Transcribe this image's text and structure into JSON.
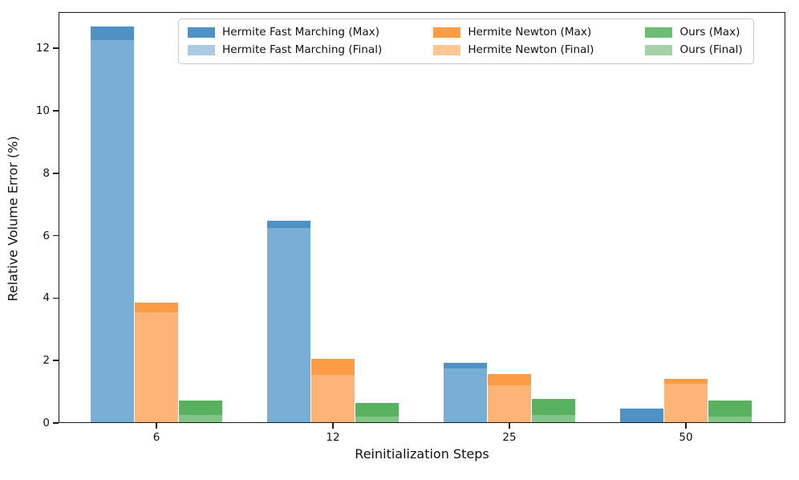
{
  "chart_data": {
    "type": "bar",
    "title": "",
    "xlabel": "Reinitialization Steps",
    "ylabel": "Relative Volume Error (%)",
    "categories": [
      "6",
      "12",
      "25",
      "50"
    ],
    "yticks": [
      0,
      2,
      4,
      6,
      8,
      10,
      12
    ],
    "ylim": [
      0,
      13.16
    ],
    "grid": false,
    "legend_position": "upper center, inside plot, 3 columns x 2 rows",
    "bar_style": "overlaid pairs: Max bar (dark) behind, Final bar (light) in front at same x",
    "groups": [
      "Hermite Fast Marching",
      "Hermite Newton",
      "Ours"
    ],
    "series": [
      {
        "name": "Hermite Fast Marching (Max)",
        "values": [
          12.7,
          6.48,
          1.93,
          0.45
        ],
        "color": "#4E92C6",
        "legend_color": "#4E92C6"
      },
      {
        "name": "Hermite Fast Marching (Final)",
        "values": [
          12.27,
          6.24,
          1.76,
          0.02
        ],
        "color": "#79AFD6",
        "legend_color": "#A9CBE4"
      },
      {
        "name": "Hermite Newton (Max)",
        "values": [
          3.86,
          2.05,
          1.56,
          1.42
        ],
        "color": "#FC9C44",
        "legend_color": "#FC9C44"
      },
      {
        "name": "Hermite Newton (Final)",
        "values": [
          3.54,
          1.55,
          1.22,
          1.26
        ],
        "color": "#FFB477",
        "legend_color": "#FDC793"
      },
      {
        "name": "Ours (Max)",
        "values": [
          0.72,
          0.65,
          0.78,
          0.72
        ],
        "color": "#58B15E",
        "legend_color": "#6FBC74"
      },
      {
        "name": "Ours (Final)",
        "values": [
          0.26,
          0.21,
          0.25,
          0.2
        ],
        "color": "#84C58A",
        "legend_color": "#A3D3A6"
      }
    ],
    "axis_color": "#1a1a1a",
    "background_color": "#ffffff"
  }
}
